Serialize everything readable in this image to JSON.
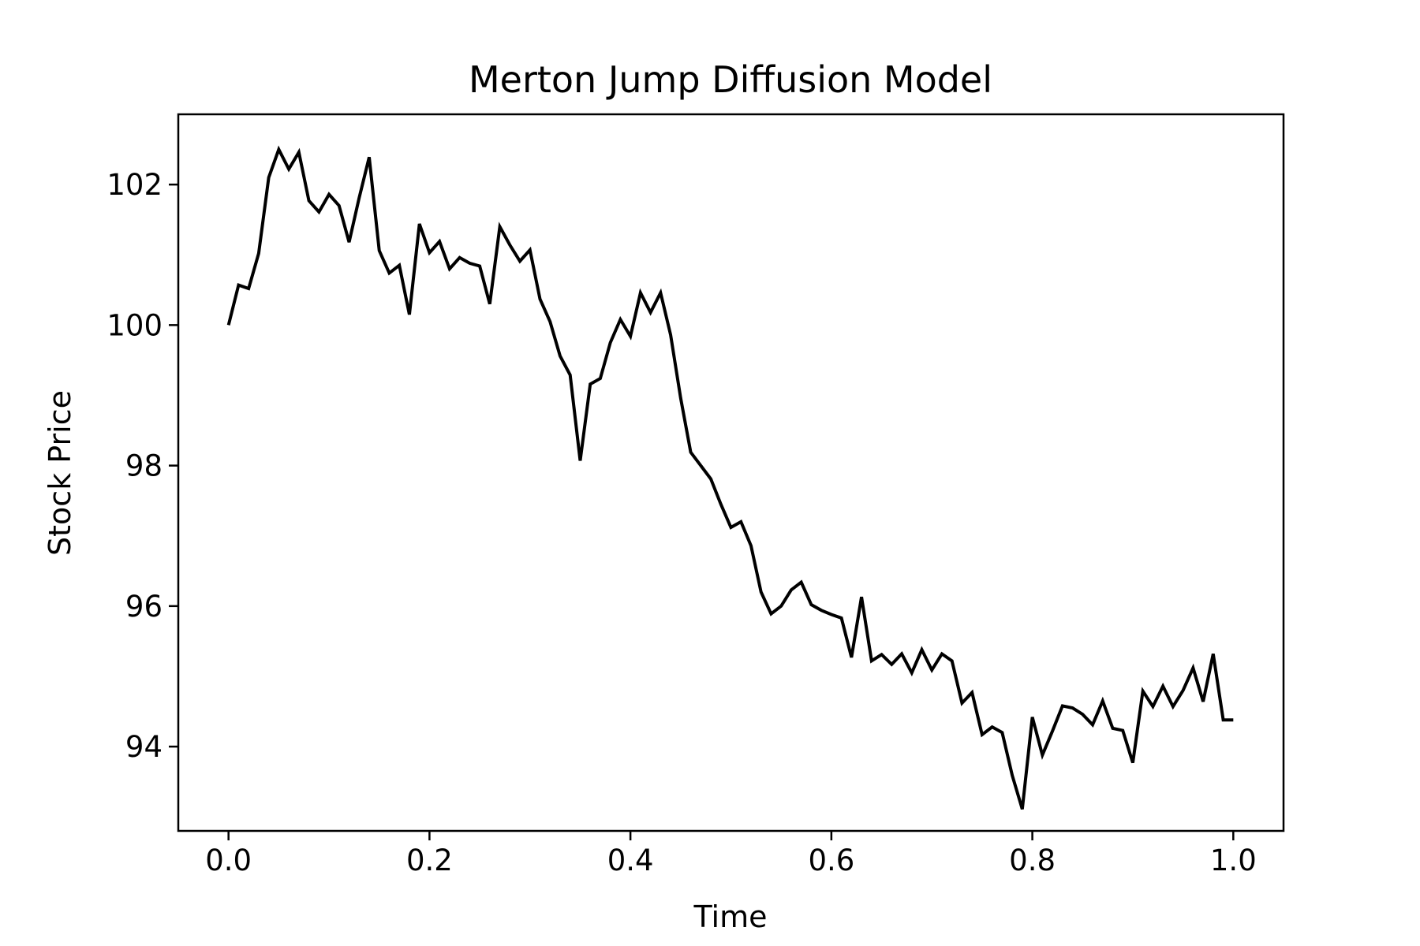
{
  "chart_data": {
    "type": "line",
    "title": "Merton Jump Diffusion Model",
    "xlabel": "Time",
    "ylabel": "Stock Price",
    "xlim": [
      -0.05,
      1.05
    ],
    "ylim": [
      92.8,
      103.0
    ],
    "x_ticks": [
      0.0,
      0.2,
      0.4,
      0.6,
      0.8,
      1.0
    ],
    "x_tick_labels": [
      "0.0",
      "0.2",
      "0.4",
      "0.6",
      "0.8",
      "1.0"
    ],
    "y_ticks": [
      94,
      96,
      98,
      100,
      102
    ],
    "y_tick_labels": [
      "94",
      "96",
      "98",
      "100",
      "102"
    ],
    "grid": false,
    "color": "#000000",
    "series": [
      {
        "x": [
          0.0,
          0.01,
          0.02,
          0.03,
          0.04,
          0.05,
          0.06,
          0.07,
          0.08,
          0.09,
          0.1,
          0.11,
          0.12,
          0.13,
          0.14,
          0.15,
          0.16,
          0.17,
          0.18,
          0.19,
          0.2,
          0.21,
          0.22,
          0.23,
          0.24,
          0.25,
          0.26,
          0.27,
          0.28,
          0.29,
          0.3,
          0.31,
          0.32,
          0.33,
          0.34,
          0.35,
          0.36,
          0.37,
          0.38,
          0.39,
          0.4,
          0.41,
          0.42,
          0.43,
          0.44,
          0.45,
          0.46,
          0.47,
          0.48,
          0.49,
          0.5,
          0.51,
          0.52,
          0.53,
          0.54,
          0.55,
          0.56,
          0.57,
          0.58,
          0.59,
          0.6,
          0.61,
          0.62,
          0.63,
          0.64,
          0.65,
          0.66,
          0.67,
          0.68,
          0.69,
          0.7,
          0.71,
          0.72,
          0.73,
          0.74,
          0.75,
          0.76,
          0.77,
          0.78,
          0.79,
          0.8,
          0.81,
          0.82,
          0.83,
          0.84,
          0.85,
          0.86,
          0.87,
          0.88,
          0.89,
          0.9,
          0.91,
          0.92,
          0.93,
          0.94,
          0.95,
          0.96,
          0.97,
          0.98,
          0.99,
          1.0
        ],
        "y": [
          100.0,
          100.57,
          100.52,
          101.02,
          102.1,
          102.5,
          102.22,
          102.46,
          101.77,
          101.61,
          101.86,
          101.7,
          101.18,
          101.81,
          102.39,
          101.06,
          100.74,
          100.85,
          100.15,
          101.44,
          101.03,
          101.19,
          100.8,
          100.96,
          100.88,
          100.84,
          100.3,
          101.4,
          101.14,
          100.91,
          101.07,
          100.37,
          100.05,
          99.56,
          99.29,
          98.07,
          99.16,
          99.24,
          99.75,
          100.08,
          99.84,
          100.46,
          100.18,
          100.46,
          99.86,
          98.96,
          98.19,
          98.0,
          97.81,
          97.45,
          97.12,
          97.2,
          96.86,
          96.2,
          95.89,
          96.0,
          96.23,
          96.34,
          96.02,
          95.94,
          95.88,
          95.83,
          95.27,
          96.13,
          95.22,
          95.31,
          95.17,
          95.32,
          95.05,
          95.38,
          95.09,
          95.32,
          95.22,
          94.62,
          94.77,
          94.17,
          94.28,
          94.2,
          93.59,
          93.11,
          94.42,
          93.88,
          94.22,
          94.58,
          94.55,
          94.46,
          94.31,
          94.65,
          94.26,
          94.23,
          93.77,
          94.79,
          94.57,
          94.86,
          94.57,
          94.8,
          95.12,
          94.64,
          95.32,
          94.38,
          94.38
        ]
      }
    ]
  }
}
